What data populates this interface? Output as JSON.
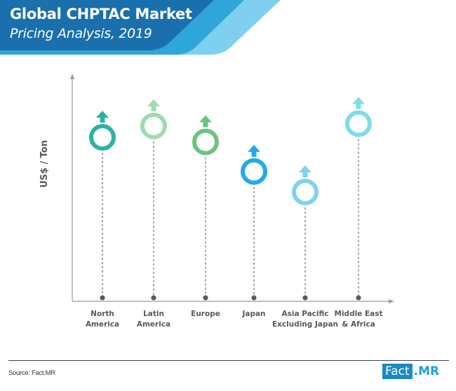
{
  "header": {
    "title": "Global CHPTAC Market",
    "subtitle": "Pricing Analysis, 2019",
    "colors": {
      "dark": "#1a6fad",
      "mid": "#2fa6d9",
      "light": "#7fd0ee"
    }
  },
  "chart_data": {
    "type": "scatter",
    "title": "Global CHPTAC Market Pricing Analysis, 2019",
    "xlabel": "",
    "ylabel": "US$ / Ton",
    "categories": [
      "North America",
      "Latin America",
      "Europe",
      "Japan",
      "Asia Pacific Excluding Japan",
      "Middle East & Africa"
    ],
    "category_labels": [
      [
        "North",
        "America"
      ],
      [
        "Latin",
        "America"
      ],
      [
        "Europe"
      ],
      [
        "Japan"
      ],
      [
        "Asia Pacific",
        "Excluding Japan"
      ],
      [
        "Middle East",
        "& Africa"
      ]
    ],
    "values": [
      72,
      77,
      70,
      57,
      48,
      78
    ],
    "value_note": "Relative index (0-100); axis has no numeric tick labels",
    "ylim": [
      0,
      100
    ],
    "grid": false,
    "legend": "none",
    "marker_colors": [
      "#2bb3a3",
      "#9fdbad",
      "#6cc47c",
      "#21aaec",
      "#7fd0f5",
      "#7fdbea"
    ]
  },
  "footer": {
    "source": "Source: Fact.MR",
    "logo_part1": "Fact",
    "logo_part2": ".MR"
  }
}
